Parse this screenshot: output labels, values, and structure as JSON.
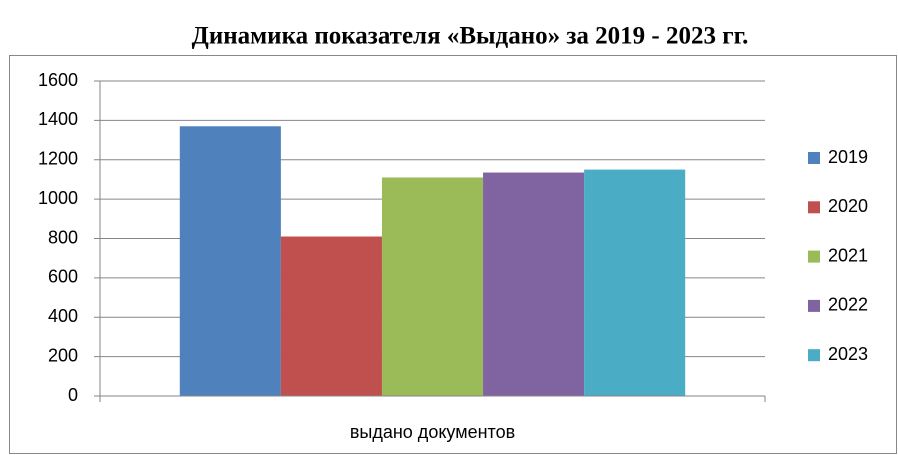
{
  "chart_data": {
    "type": "bar",
    "title": "Динамика показателя «Выдано» за 2019 - 2023 гг.",
    "categories": [
      "выдано документов"
    ],
    "series": [
      {
        "name": "2019",
        "color": "#4f81bd",
        "values": [
          1370
        ]
      },
      {
        "name": "2020",
        "color": "#c0504d",
        "values": [
          810
        ]
      },
      {
        "name": "2021",
        "color": "#9bbb59",
        "values": [
          1110
        ]
      },
      {
        "name": "2022",
        "color": "#8064a2",
        "values": [
          1135
        ]
      },
      {
        "name": "2023",
        "color": "#4bacc6",
        "values": [
          1150
        ]
      }
    ],
    "ylim": [
      0,
      1600
    ],
    "yticks": [
      0,
      200,
      400,
      600,
      800,
      1000,
      1200,
      1400,
      1600
    ],
    "grid": true,
    "legend": "right"
  }
}
